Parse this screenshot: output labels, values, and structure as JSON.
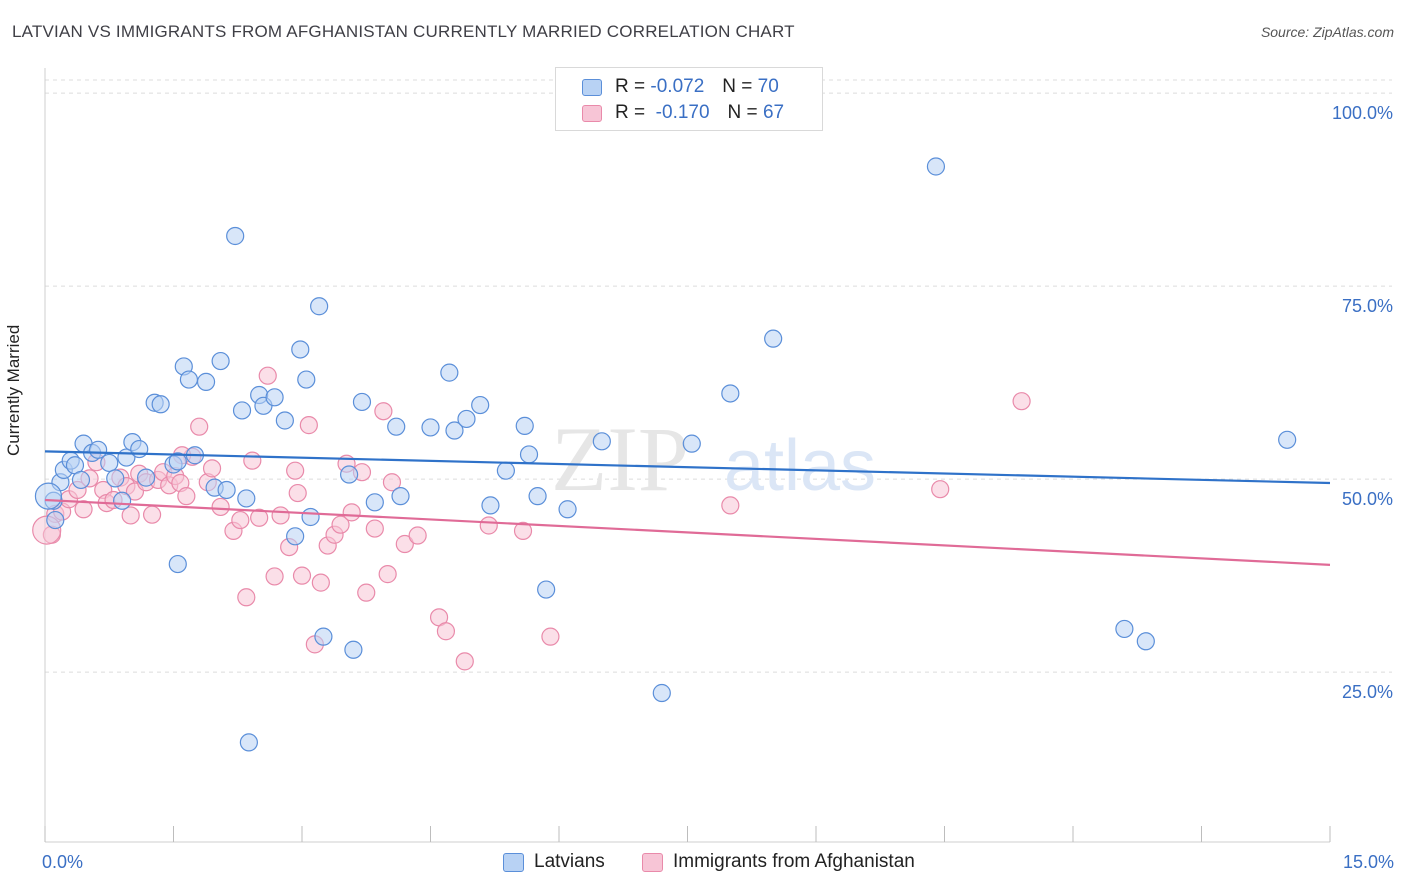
{
  "title": "LATVIAN VS IMMIGRANTS FROM AFGHANISTAN CURRENTLY MARRIED CORRELATION CHART",
  "source": "Source: ZipAtlas.com",
  "watermark": {
    "zip": "ZIP",
    "atlas": "atlas"
  },
  "legend": {
    "rows": [
      {
        "r_label": "R =",
        "r_value": "-0.072",
        "n_label": "N =",
        "n_value": "70"
      },
      {
        "r_label": "R =",
        "r_value": "-0.170",
        "n_label": "N =",
        "n_value": "67"
      }
    ]
  },
  "colors": {
    "latvians_fill": "#b8d2f4",
    "latvians_stroke": "#5b8fd9",
    "latvians_line": "#2f72c9",
    "afghan_fill": "#f7c5d6",
    "afghan_stroke": "#e98aaa",
    "afghan_line": "#e06b97",
    "grid": "#dcdcdc",
    "tick_text": "#3a6fc4"
  },
  "chart_data": {
    "type": "scatter",
    "title": "LATVIAN VS IMMIGRANTS FROM AFGHANISTAN CURRENTLY MARRIED CORRELATION CHART",
    "xlabel": "",
    "ylabel": "Currently Married",
    "xlim": [
      0,
      15
    ],
    "ylim": [
      3,
      103
    ],
    "x_tick_labels": [
      "0.0%",
      "15.0%"
    ],
    "y_ticks": [
      25,
      50,
      75,
      100
    ],
    "y_tick_labels": [
      "25.0%",
      "50.0%",
      "75.0%",
      "100.0%"
    ],
    "grid": true,
    "legend_placement": "top-center",
    "series": [
      {
        "name": "Latvians",
        "r": -0.072,
        "n": 70,
        "trend": {
          "x": [
            0,
            15
          ],
          "y": [
            53.6,
            49.5
          ]
        },
        "points": [
          [
            0.1,
            47.2
          ],
          [
            0.12,
            44.7
          ],
          [
            0.18,
            49.6
          ],
          [
            0.22,
            51.2
          ],
          [
            0.3,
            52.4
          ],
          [
            0.35,
            51.8
          ],
          [
            0.42,
            49.9
          ],
          [
            0.45,
            54.6
          ],
          [
            0.55,
            53.4
          ],
          [
            0.62,
            53.8
          ],
          [
            0.75,
            52.1
          ],
          [
            0.82,
            50.1
          ],
          [
            0.9,
            47.2
          ],
          [
            0.95,
            52.8
          ],
          [
            1.02,
            54.8
          ],
          [
            1.1,
            53.9
          ],
          [
            1.18,
            50.2
          ],
          [
            1.28,
            59.9
          ],
          [
            1.35,
            59.7
          ],
          [
            1.5,
            51.9
          ],
          [
            1.55,
            52.3
          ],
          [
            1.62,
            64.6
          ],
          [
            1.68,
            62.9
          ],
          [
            1.75,
            53.1
          ],
          [
            1.88,
            62.6
          ],
          [
            1.98,
            48.9
          ],
          [
            2.05,
            65.3
          ],
          [
            2.12,
            48.6
          ],
          [
            2.22,
            81.5
          ],
          [
            2.3,
            58.9
          ],
          [
            2.35,
            47.5
          ],
          [
            2.5,
            60.9
          ],
          [
            2.55,
            59.5
          ],
          [
            2.68,
            60.6
          ],
          [
            2.8,
            57.6
          ],
          [
            2.92,
            42.6
          ],
          [
            2.98,
            66.8
          ],
          [
            3.05,
            62.9
          ],
          [
            3.1,
            45.1
          ],
          [
            3.2,
            72.4
          ],
          [
            3.25,
            29.6
          ],
          [
            3.55,
            50.6
          ],
          [
            3.6,
            27.9
          ],
          [
            3.7,
            60.0
          ],
          [
            3.85,
            47.0
          ],
          [
            4.1,
            56.8
          ],
          [
            4.15,
            47.8
          ],
          [
            4.5,
            56.7
          ],
          [
            4.72,
            63.8
          ],
          [
            4.78,
            56.3
          ],
          [
            4.92,
            57.8
          ],
          [
            5.08,
            59.6
          ],
          [
            5.2,
            46.6
          ],
          [
            5.38,
            51.1
          ],
          [
            5.6,
            56.9
          ],
          [
            5.65,
            53.2
          ],
          [
            5.75,
            47.8
          ],
          [
            5.85,
            35.7
          ],
          [
            6.1,
            46.1
          ],
          [
            6.5,
            54.9
          ],
          [
            7.2,
            22.3
          ],
          [
            7.55,
            54.6
          ],
          [
            8.0,
            61.1
          ],
          [
            8.5,
            68.2
          ],
          [
            10.4,
            90.5
          ],
          [
            12.6,
            30.6
          ],
          [
            12.85,
            29.0
          ],
          [
            14.5,
            55.1
          ],
          [
            1.55,
            39.0
          ],
          [
            2.38,
            15.9
          ]
        ]
      },
      {
        "name": "Immigrants from Afghanistan",
        "r": -0.17,
        "n": 67,
        "trend": {
          "x": [
            0,
            15
          ],
          "y": [
            47.3,
            38.9
          ]
        },
        "points": [
          [
            0.08,
            42.8
          ],
          [
            0.12,
            45.5
          ],
          [
            0.2,
            45.8
          ],
          [
            0.28,
            47.4
          ],
          [
            0.38,
            48.6
          ],
          [
            0.45,
            46.1
          ],
          [
            0.52,
            50.1
          ],
          [
            0.6,
            52.2
          ],
          [
            0.68,
            48.6
          ],
          [
            0.72,
            46.9
          ],
          [
            0.8,
            47.3
          ],
          [
            0.88,
            50.2
          ],
          [
            0.95,
            49.1
          ],
          [
            1.0,
            45.3
          ],
          [
            1.05,
            48.4
          ],
          [
            1.1,
            50.7
          ],
          [
            1.18,
            49.6
          ],
          [
            1.25,
            45.4
          ],
          [
            1.32,
            49.9
          ],
          [
            1.38,
            50.9
          ],
          [
            1.45,
            49.2
          ],
          [
            1.52,
            50.4
          ],
          [
            1.58,
            49.5
          ],
          [
            1.65,
            47.8
          ],
          [
            1.72,
            52.9
          ],
          [
            1.8,
            56.8
          ],
          [
            1.9,
            49.6
          ],
          [
            1.95,
            51.4
          ],
          [
            2.05,
            46.4
          ],
          [
            2.2,
            43.3
          ],
          [
            2.28,
            44.7
          ],
          [
            2.35,
            34.7
          ],
          [
            2.42,
            52.4
          ],
          [
            2.5,
            45.0
          ],
          [
            2.6,
            63.4
          ],
          [
            2.68,
            37.4
          ],
          [
            2.75,
            45.3
          ],
          [
            2.85,
            41.2
          ],
          [
            2.92,
            51.1
          ],
          [
            3.0,
            37.5
          ],
          [
            3.08,
            57.0
          ],
          [
            3.15,
            28.6
          ],
          [
            3.22,
            36.6
          ],
          [
            3.3,
            41.4
          ],
          [
            3.38,
            42.8
          ],
          [
            3.45,
            44.1
          ],
          [
            3.58,
            45.7
          ],
          [
            3.7,
            50.9
          ],
          [
            3.75,
            35.3
          ],
          [
            3.85,
            43.6
          ],
          [
            3.95,
            58.8
          ],
          [
            4.0,
            37.7
          ],
          [
            4.05,
            49.6
          ],
          [
            4.2,
            41.6
          ],
          [
            4.35,
            42.7
          ],
          [
            4.6,
            32.1
          ],
          [
            4.68,
            30.3
          ],
          [
            4.9,
            26.4
          ],
          [
            5.18,
            44.0
          ],
          [
            5.58,
            43.3
          ],
          [
            5.9,
            29.6
          ],
          [
            8.0,
            46.6
          ],
          [
            10.45,
            48.7
          ],
          [
            11.4,
            60.1
          ],
          [
            3.52,
            52.0
          ],
          [
            2.95,
            48.2
          ],
          [
            1.6,
            53.1
          ]
        ]
      }
    ]
  }
}
